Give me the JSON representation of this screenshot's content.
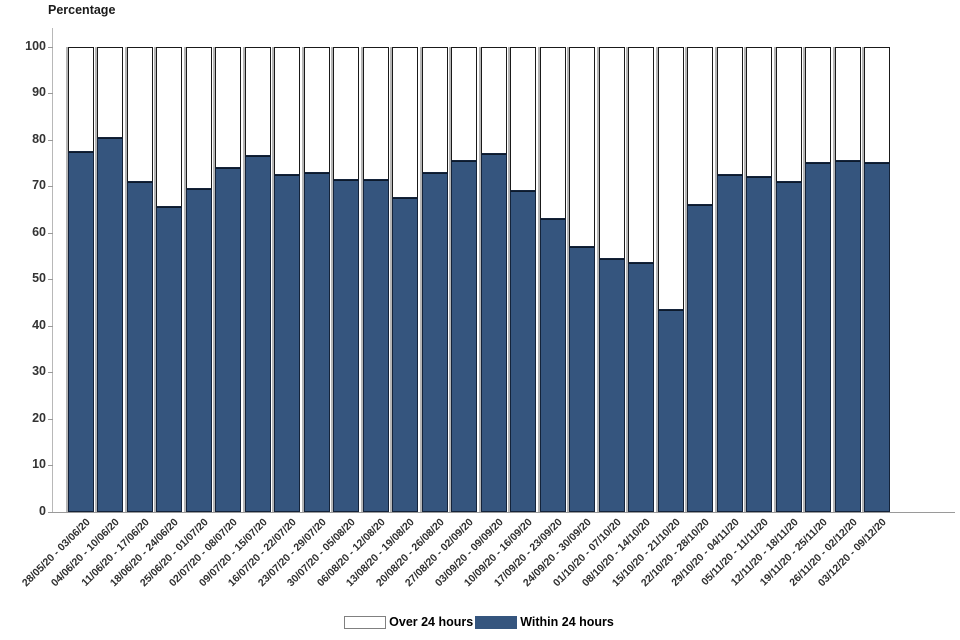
{
  "title": "Percentage",
  "legend": [
    {
      "label": "Over 24 hours",
      "color": "#ffffff",
      "border": "#808080"
    },
    {
      "label": "Within 24 hours",
      "color": "#35557E",
      "border": "#35557E"
    }
  ],
  "colors": {
    "bar_blue": "#35557E",
    "bar_border": "#1a1a1a",
    "axis_line": "#b8b8b8",
    "text": "#333333",
    "bar_shadow": "#a8a8a8"
  },
  "chart_data": {
    "type": "bar",
    "stacked": true,
    "title": "Percentage",
    "xlabel": "",
    "ylabel": "Percentage",
    "ylim": [
      0,
      100
    ],
    "yticks": [
      0,
      10,
      20,
      30,
      40,
      50,
      60,
      70,
      80,
      90,
      100
    ],
    "grid": false,
    "legend_position": "bottom",
    "categories": [
      "28/05/20 - 03/06/20",
      "04/06/20 - 10/06/20",
      "11/06/20 - 17/06/20",
      "18/06/20 - 24/06/20",
      "25/06/20 - 01/07/20",
      "02/07/20 - 08/07/20",
      "09/07/20 - 15/07/20",
      "16/07/20 - 22/07/20",
      "23/07/20 - 29/07/20",
      "30/07/20 - 05/08/20",
      "06/08/20 - 12/08/20",
      "13/08/20 - 19/08/20",
      "20/08/20 - 26/08/20",
      "27/08/20 - 02/09/20",
      "03/09/20 - 09/09/20",
      "10/09/20 - 16/09/20",
      "17/09/20 - 23/09/20",
      "24/09/20 - 30/09/20",
      "01/10/20 - 07/10/20",
      "08/10/20 - 14/10/20",
      "15/10/20 - 21/10/20",
      "22/10/20 - 28/10/20",
      "29/10/20 - 04/11/20",
      "05/11/20 - 11/11/20",
      "12/11/20 - 18/11/20",
      "19/11/20 - 25/11/20",
      "26/11/20 - 02/12/20",
      "03/12/20 - 09/12/20"
    ],
    "series": [
      {
        "name": "Within 24 hours",
        "color": "#35557E",
        "values": [
          77.5,
          80.5,
          71,
          65.5,
          69.5,
          74,
          76.5,
          72.5,
          73,
          71.5,
          71.5,
          67.5,
          73,
          75.5,
          77,
          69,
          63,
          57,
          54.5,
          53.5,
          43.5,
          66,
          72.5,
          72,
          71,
          75,
          75.5,
          75
        ]
      },
      {
        "name": "Over 24 hours",
        "color": "#FFFFFF",
        "values": [
          22.5,
          19.5,
          29,
          34.5,
          30.5,
          26,
          23.5,
          27.5,
          27,
          28.5,
          28.5,
          32.5,
          27,
          24.5,
          23,
          31,
          37,
          43,
          45.5,
          46.5,
          56.5,
          34,
          27.5,
          28,
          29,
          25,
          24.5,
          25
        ]
      }
    ]
  }
}
